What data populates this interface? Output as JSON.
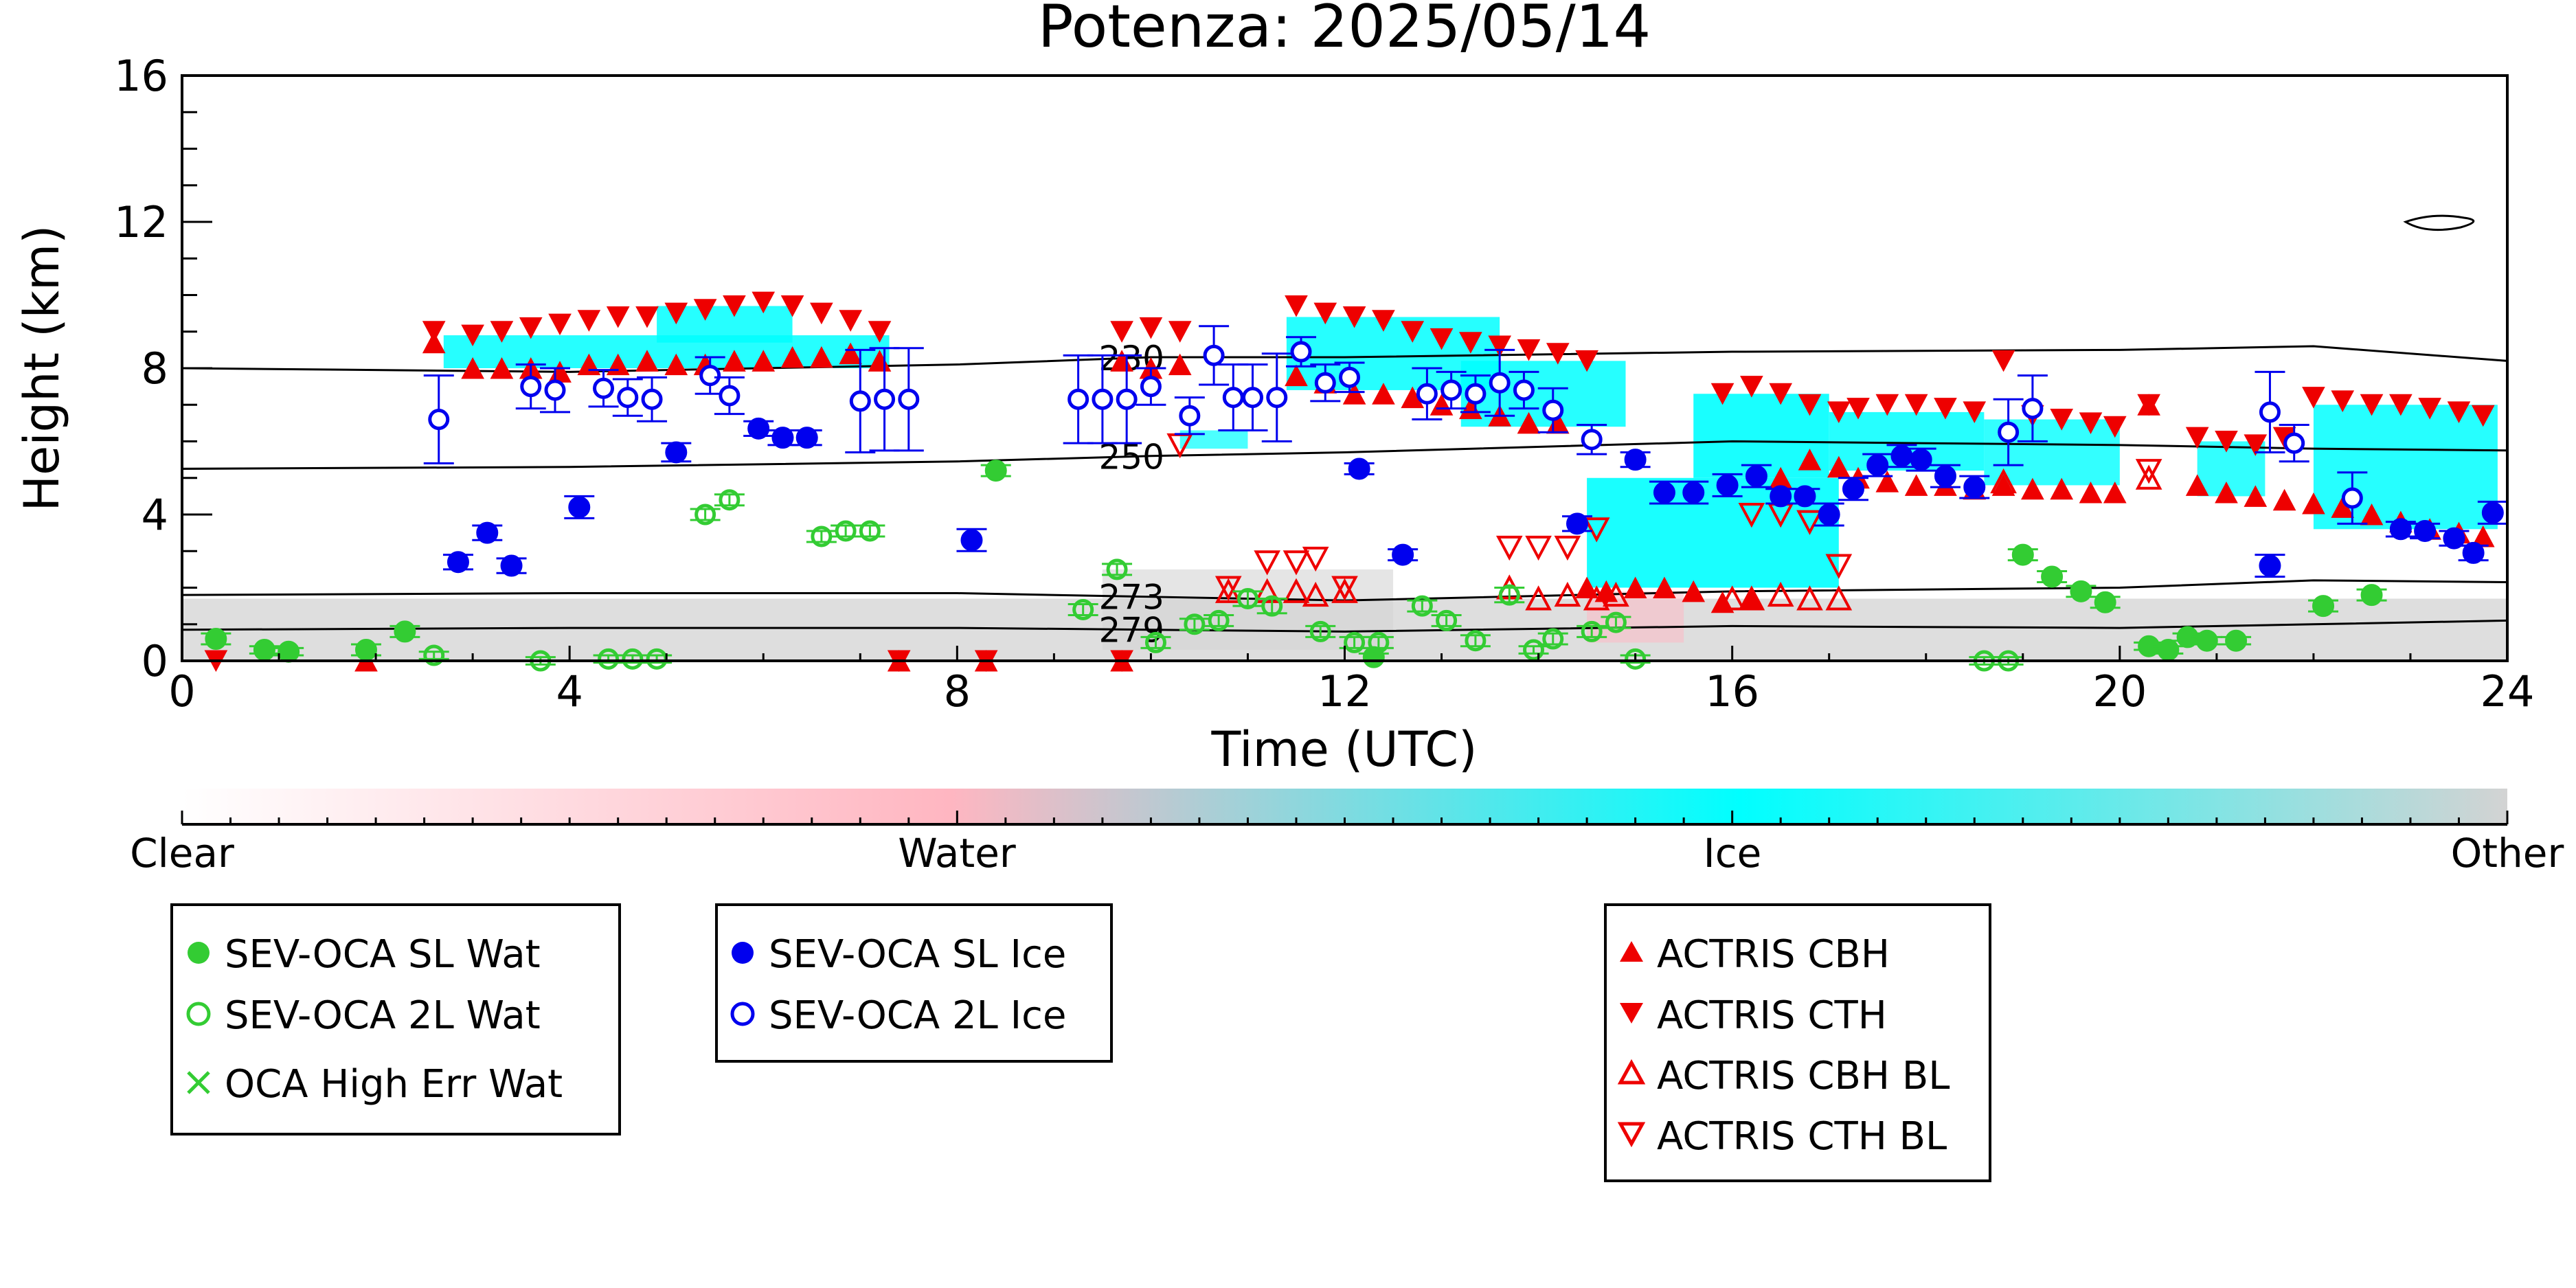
{
  "chart_data": {
    "type": "scatter",
    "title": "Potenza: 2025/05/14",
    "xlabel": "Time (UTC)",
    "ylabel": "Height (km)",
    "xlim": [
      0,
      24
    ],
    "ylim": [
      0,
      16
    ],
    "xticks": [
      "0",
      "4",
      "8",
      "12",
      "16",
      "20",
      "24"
    ],
    "yticks": [
      "0",
      "4",
      "8",
      "12",
      "16"
    ],
    "colorbar": {
      "labels": [
        "Clear",
        "Water",
        "Ice",
        "Other"
      ],
      "colors": [
        "#ffffff",
        "#ffb6c1",
        "#00ffff",
        "#d3d3d3"
      ]
    },
    "isotherms": [
      {
        "label": "230",
        "x": [
          0,
          4,
          8,
          10,
          12,
          16,
          20,
          22,
          24
        ],
        "y": [
          8.0,
          7.9,
          8.1,
          8.3,
          8.3,
          8.45,
          8.5,
          8.6,
          8.2
        ]
      },
      {
        "label": "250",
        "x": [
          0,
          4,
          8,
          10,
          12,
          16,
          20,
          22,
          24
        ],
        "y": [
          5.25,
          5.3,
          5.45,
          5.6,
          5.7,
          6.0,
          5.9,
          5.8,
          5.75
        ]
      },
      {
        "label": "273",
        "x": [
          0,
          4,
          8,
          10,
          12,
          16,
          20,
          22,
          24
        ],
        "y": [
          1.8,
          1.85,
          1.85,
          1.75,
          1.65,
          1.9,
          2.0,
          2.2,
          2.15
        ]
      },
      {
        "label": "279",
        "x": [
          0,
          4,
          8,
          10,
          12,
          16,
          20,
          22,
          24
        ],
        "y": [
          0.85,
          0.9,
          0.9,
          0.85,
          0.8,
          0.95,
          0.9,
          1.0,
          1.1
        ]
      }
    ],
    "legends": [
      {
        "entries": [
          {
            "label": "SEV-OCA SL Wat",
            "marker": "filled-circle",
            "color": "#33cc33"
          },
          {
            "label": "SEV-OCA 2L Wat",
            "marker": "open-circle",
            "color": "#33cc33"
          },
          {
            "label": "OCA High Err Wat",
            "marker": "x",
            "color": "#33cc33"
          }
        ]
      },
      {
        "entries": [
          {
            "label": "SEV-OCA SL Ice",
            "marker": "filled-circle",
            "color": "#0000ee"
          },
          {
            "label": "SEV-OCA 2L Ice",
            "marker": "open-circle",
            "color": "#0000ee"
          }
        ]
      },
      {
        "entries": [
          {
            "label": "ACTRIS CBH",
            "marker": "filled-triangle-up",
            "color": "#ee0000"
          },
          {
            "label": "ACTRIS CTH",
            "marker": "filled-triangle-down",
            "color": "#ee0000"
          },
          {
            "label": "ACTRIS CBH BL",
            "marker": "open-triangle-up",
            "color": "#ee0000"
          },
          {
            "label": "ACTRIS CTH BL",
            "marker": "open-triangle-down",
            "color": "#ee0000"
          }
        ]
      }
    ],
    "series": [
      {
        "name": "SEV-OCA SL Wat",
        "x": [
          0.35,
          0.85,
          1.1,
          1.9,
          2.3,
          8.4,
          12.3,
          19.0,
          19.3,
          19.6,
          19.85,
          20.3,
          20.5,
          20.7,
          20.9,
          21.2,
          22.1,
          22.6
        ],
        "y": [
          0.6,
          0.3,
          0.25,
          0.3,
          0.8,
          5.2,
          0.1,
          2.9,
          2.3,
          1.9,
          1.6,
          0.4,
          0.3,
          0.65,
          0.55,
          0.55,
          1.5,
          1.8
        ],
        "err": [
          0.15,
          0.1,
          0.1,
          0.15,
          0.15,
          0.15,
          0.1,
          0.15,
          0.15,
          0.15,
          0.15,
          0.1,
          0.1,
          0.1,
          0.1,
          0.1,
          0.15,
          0.15
        ]
      },
      {
        "name": "SEV-OCA 2L Wat",
        "x": [
          2.6,
          3.7,
          4.4,
          4.65,
          4.9,
          5.4,
          5.65,
          6.6,
          6.85,
          7.1,
          9.3,
          9.65,
          10.05,
          10.45,
          10.7,
          11.0,
          11.25,
          11.75,
          12.1,
          12.35,
          12.8,
          13.05,
          13.35,
          13.7,
          13.95,
          14.15,
          14.55,
          14.8,
          15.0,
          18.6,
          18.85
        ],
        "y": [
          0.15,
          0.0,
          0.05,
          0.05,
          0.05,
          4.0,
          4.4,
          3.4,
          3.55,
          3.55,
          1.4,
          2.5,
          0.5,
          1.0,
          1.1,
          1.7,
          1.5,
          0.8,
          0.5,
          0.5,
          1.5,
          1.1,
          0.55,
          1.8,
          0.3,
          0.6,
          0.8,
          1.05,
          0.05,
          0.0,
          0.0
        ],
        "err": [
          0.1,
          0.1,
          0.1,
          0.1,
          0.1,
          0.15,
          0.15,
          0.15,
          0.15,
          0.15,
          0.15,
          0.15,
          0.15,
          0.15,
          0.15,
          0.2,
          0.2,
          0.15,
          0.15,
          0.15,
          0.15,
          0.15,
          0.15,
          0.2,
          0.1,
          0.15,
          0.15,
          0.15,
          0.1,
          0.1,
          0.1
        ]
      },
      {
        "name": "OCA High Err Wat",
        "x": [],
        "y": []
      },
      {
        "name": "SEV-OCA SL Ice",
        "x": [
          2.85,
          3.15,
          3.4,
          4.1,
          5.1,
          5.95,
          6.2,
          6.45,
          8.15,
          12.15,
          12.6,
          14.4,
          15.0,
          15.3,
          15.6,
          15.95,
          16.25,
          16.5,
          16.75,
          17.0,
          17.25,
          17.5,
          17.75,
          17.95,
          18.2,
          18.5,
          21.55,
          22.9,
          23.15,
          23.45,
          23.65,
          23.85
        ],
        "y": [
          2.7,
          3.5,
          2.6,
          4.2,
          5.7,
          6.35,
          6.1,
          6.1,
          3.3,
          5.25,
          2.9,
          3.75,
          5.5,
          4.6,
          4.6,
          4.8,
          5.05,
          4.5,
          4.5,
          4.0,
          4.7,
          5.35,
          5.6,
          5.5,
          5.05,
          4.75,
          2.6,
          3.6,
          3.55,
          3.35,
          2.95,
          4.05
        ],
        "err": [
          0.2,
          0.2,
          0.2,
          0.3,
          0.25,
          0.2,
          0.2,
          0.2,
          0.3,
          0.15,
          0.15,
          0.2,
          0.2,
          0.3,
          0.3,
          0.3,
          0.3,
          0.2,
          0.2,
          0.3,
          0.3,
          0.3,
          0.3,
          0.3,
          0.3,
          0.3,
          0.3,
          0.2,
          0.2,
          0.2,
          0.2,
          0.3
        ]
      },
      {
        "name": "SEV-OCA 2L Ice",
        "x": [
          2.65,
          3.6,
          3.85,
          4.35,
          4.6,
          4.85,
          5.45,
          5.65,
          7.0,
          7.25,
          7.5,
          9.25,
          9.5,
          9.75,
          10.0,
          10.4,
          10.65,
          10.85,
          11.05,
          11.3,
          11.55,
          11.8,
          12.05,
          12.85,
          13.1,
          13.35,
          13.6,
          13.85,
          14.15,
          14.55,
          18.85,
          19.1,
          21.55,
          21.8,
          22.4
        ],
        "y": [
          6.6,
          7.5,
          7.4,
          7.45,
          7.2,
          7.15,
          7.8,
          7.25,
          7.1,
          7.15,
          7.15,
          7.15,
          7.15,
          7.15,
          7.5,
          6.7,
          8.35,
          7.2,
          7.2,
          7.2,
          8.45,
          7.6,
          7.75,
          7.3,
          7.4,
          7.3,
          7.6,
          7.4,
          6.85,
          6.05,
          6.25,
          6.9,
          6.8,
          5.95,
          4.45
        ],
        "err": [
          1.2,
          0.6,
          0.6,
          0.5,
          0.5,
          0.6,
          0.5,
          0.5,
          1.4,
          1.4,
          1.4,
          1.2,
          1.2,
          1.2,
          0.5,
          0.5,
          0.8,
          0.9,
          0.9,
          1.2,
          0.4,
          0.5,
          0.4,
          0.7,
          0.5,
          0.5,
          0.9,
          0.5,
          0.6,
          0.4,
          0.9,
          0.9,
          1.1,
          0.5,
          0.7
        ]
      },
      {
        "name": "ACTRIS CBH",
        "x": [
          2.6,
          3.0,
          3.3,
          3.6,
          3.9,
          4.2,
          4.5,
          4.8,
          5.1,
          5.4,
          5.7,
          6.0,
          6.3,
          6.6,
          6.9,
          7.2,
          9.7,
          10.0,
          10.3,
          11.5,
          11.8,
          12.1,
          12.4,
          12.7,
          13.0,
          13.3,
          13.6,
          13.9,
          14.2,
          14.5,
          14.7,
          15.0,
          15.3,
          15.6,
          15.9,
          16.2,
          16.5,
          16.8,
          17.1,
          17.3,
          17.6,
          17.9,
          18.2,
          18.5,
          18.8,
          19.1,
          19.4,
          19.7,
          19.95,
          20.3,
          20.8,
          21.1,
          21.4,
          21.7,
          22.0,
          22.3,
          22.6,
          22.9,
          23.2,
          23.5,
          23.75,
          1.9,
          7.4,
          8.3,
          9.7
        ],
        "y": [
          8.7,
          8.0,
          8.0,
          8.0,
          7.9,
          8.1,
          8.1,
          8.2,
          8.1,
          8.1,
          8.2,
          8.2,
          8.3,
          8.3,
          8.4,
          8.2,
          8.2,
          8.0,
          8.1,
          7.8,
          7.6,
          7.3,
          7.3,
          7.2,
          7.0,
          6.9,
          6.7,
          6.5,
          6.5,
          2.0,
          1.9,
          2.0,
          2.0,
          1.9,
          1.6,
          1.7,
          5.0,
          5.5,
          5.3,
          5.0,
          4.9,
          4.8,
          4.8,
          4.7,
          4.8,
          4.7,
          4.7,
          4.6,
          4.6,
          7.0,
          4.8,
          4.6,
          4.5,
          4.4,
          4.3,
          4.2,
          4.0,
          3.8,
          3.6,
          3.5,
          3.4,
          0.0,
          0.0,
          0.0,
          0.0
        ]
      },
      {
        "name": "ACTRIS CTH",
        "x": [
          2.6,
          3.0,
          3.3,
          3.6,
          3.9,
          4.2,
          4.5,
          4.8,
          5.1,
          5.4,
          5.7,
          6.0,
          6.3,
          6.6,
          6.9,
          7.2,
          9.7,
          10.0,
          10.3,
          11.5,
          11.8,
          12.1,
          12.4,
          12.7,
          13.0,
          13.3,
          13.6,
          13.9,
          14.2,
          14.5,
          15.9,
          16.2,
          16.5,
          16.8,
          17.1,
          17.3,
          17.6,
          17.9,
          18.2,
          18.5,
          18.8,
          19.1,
          19.4,
          19.7,
          19.95,
          20.3,
          20.8,
          21.1,
          21.4,
          21.7,
          22.0,
          22.3,
          22.6,
          22.9,
          23.2,
          23.5,
          23.75,
          0.35,
          7.4,
          8.3,
          9.7
        ],
        "y": [
          9.0,
          8.9,
          9.0,
          9.1,
          9.2,
          9.3,
          9.4,
          9.4,
          9.5,
          9.6,
          9.7,
          9.8,
          9.7,
          9.5,
          9.3,
          9.0,
          9.0,
          9.1,
          9.0,
          9.7,
          9.5,
          9.4,
          9.3,
          9.0,
          8.8,
          8.7,
          8.6,
          8.5,
          8.4,
          8.2,
          7.3,
          7.5,
          7.3,
          7.0,
          6.8,
          6.9,
          7.0,
          7.0,
          6.9,
          6.8,
          8.2,
          6.7,
          6.6,
          6.5,
          6.4,
          7.0,
          6.1,
          6.0,
          5.9,
          6.1,
          7.2,
          7.1,
          7.0,
          7.0,
          6.9,
          6.8,
          6.7,
          0.0,
          0.0,
          0.0,
          0.0
        ]
      },
      {
        "name": "ACTRIS CBH BL",
        "x": [
          10.8,
          11.2,
          11.5,
          11.7,
          12.0,
          13.7,
          14.0,
          14.3,
          14.6,
          14.8,
          16.0,
          16.2,
          16.5,
          16.8,
          17.1,
          18.8,
          20.3
        ],
        "y": [
          1.9,
          1.9,
          1.9,
          1.8,
          1.9,
          2.0,
          1.7,
          1.8,
          1.7,
          1.8,
          1.7,
          1.7,
          1.8,
          1.7,
          1.7,
          4.9,
          5.0
        ]
      },
      {
        "name": "ACTRIS CTH BL",
        "x": [
          10.3,
          10.8,
          11.2,
          11.5,
          11.7,
          12.0,
          13.7,
          14.0,
          14.3,
          14.6,
          16.2,
          16.5,
          16.8,
          17.1,
          20.3
        ],
        "y": [
          5.9,
          2.0,
          2.7,
          2.7,
          2.8,
          2.0,
          3.1,
          3.1,
          3.1,
          3.6,
          4.0,
          4.0,
          3.8,
          2.6,
          5.2
        ]
      }
    ],
    "grid": false,
    "legend_position": "below"
  }
}
